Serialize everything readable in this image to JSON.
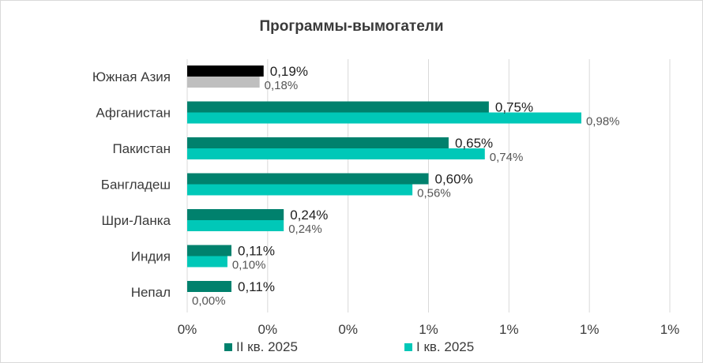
{
  "chart_data": {
    "type": "bar",
    "orientation": "horizontal",
    "title": "Программы-вымогатели",
    "categories": [
      "Южная Азия",
      "Афганистан",
      "Пакистан",
      "Бангладеш",
      "Шри-Ланка",
      "Индия",
      "Непал"
    ],
    "series": [
      {
        "name": "II кв. 2025",
        "values": [
          0.19,
          0.75,
          0.65,
          0.6,
          0.24,
          0.11,
          0.11
        ],
        "labels": [
          "0,19%",
          "0,75%",
          "0,65%",
          "0,60%",
          "0,24%",
          "0,11%",
          "0,11%"
        ],
        "color": "#00816d",
        "highlight_color": "#000000"
      },
      {
        "name": "I кв. 2025",
        "values": [
          0.18,
          0.98,
          0.74,
          0.56,
          0.24,
          0.1,
          0.0
        ],
        "labels": [
          "0,18%",
          "0,98%",
          "0,74%",
          "0,56%",
          "0,24%",
          "0,10%",
          "0,00%"
        ],
        "color": "#00c8b8",
        "highlight_color": "#bfbfbf"
      }
    ],
    "highlight_category": "Южная Азия",
    "xlim": [
      0,
      1.2
    ],
    "x_ticks": [
      0,
      0.2,
      0.4,
      0.6,
      0.8,
      1.0,
      1.2
    ],
    "x_tick_labels": [
      "0%",
      "0%",
      "0%",
      "1%",
      "1%",
      "1%",
      "1%"
    ],
    "grid": true,
    "legend_position": "bottom"
  }
}
